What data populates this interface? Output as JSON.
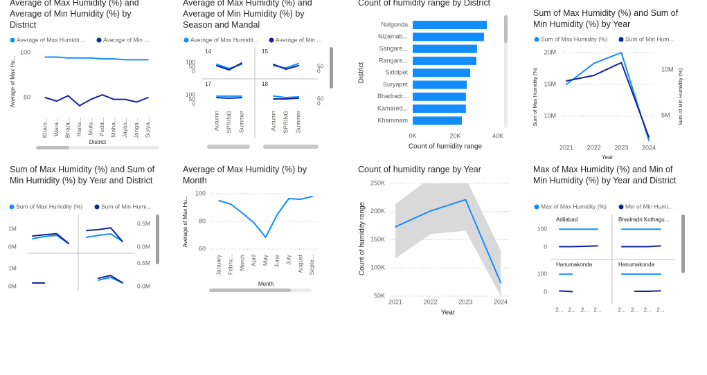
{
  "chart_data": [
    {
      "type": "line",
      "title": "Average of Max Humidity (%) and Average of Min Humidity (%) by District",
      "categories": [
        "Kham...",
        "Wara...",
        "Bhadr...",
        "Hanu...",
        "Mulu...",
        "Pedd...",
        "Maha...",
        "Jayas...",
        "Janga...",
        "Surya..."
      ],
      "series": [
        {
          "name": "Average of Max Humidit...",
          "color": "#118DFF",
          "values": [
            95,
            95,
            94,
            94,
            94,
            93,
            93,
            92,
            92,
            92
          ]
        },
        {
          "name": "Average of Min ...",
          "color": "#12239E",
          "values": [
            50,
            46,
            52,
            41,
            48,
            53,
            48,
            48,
            45,
            50
          ]
        }
      ],
      "ylim": [
        35,
        100
      ],
      "yticks": [
        50,
        100
      ],
      "grid": false,
      "x_label": "District",
      "y_label": "Average of Max Hu..."
    },
    {
      "type": "panel-line",
      "title": "Average of Max Humidity (%) and Average of Min Humidity (%) by Season and Mandal",
      "categories": [
        "Autumn",
        "SPRING",
        "Summer"
      ],
      "series": [
        {
          "name": "Average of Max Humidit...",
          "color": "#118DFF"
        },
        {
          "name": "Average of Min ...",
          "color": "#12239E",
          "axis": "y2"
        }
      ],
      "panels": [
        {
          "name": "14",
          "values": [
            [
              77,
              31,
              77
            ],
            [
              57,
              14,
              86
            ]
          ]
        },
        {
          "name": "15",
          "values": [
            [
              62,
              38,
              85
            ],
            [
              71,
              21,
              57
            ]
          ]
        },
        {
          "name": "17",
          "values": [
            [
              85,
              85,
              85
            ],
            [
              64,
              57,
              64
            ]
          ]
        },
        {
          "name": "18",
          "values": [
            [
              85,
              69,
              77
            ],
            [
              50,
              50,
              57
            ]
          ]
        }
      ],
      "ylim": [
        0,
        100
      ],
      "yticks": [
        0,
        50,
        100
      ],
      "y2lim": [
        0,
        93
      ],
      "y2ticks": [
        0,
        50
      ]
    },
    {
      "type": "hbar",
      "title": "Count of humidity range by District",
      "categories": [
        "Nalgonda",
        "Nizamab...",
        "Sangare...",
        "Rangare...",
        "Siddipet",
        "Suryapet",
        "Bhadradr...",
        "Kamared...",
        "Khammam"
      ],
      "values": [
        34800,
        33500,
        30200,
        29900,
        27000,
        25400,
        25000,
        25000,
        23100
      ],
      "color": "#118DFF",
      "xlim": [
        0,
        40000
      ],
      "xticks": [
        {
          "value": 0,
          "label": "0K"
        },
        {
          "value": 20000,
          "label": "20K"
        },
        {
          "value": 40000,
          "label": "40K"
        }
      ],
      "x_label": "Count of humidity range",
      "y_label": "District"
    },
    {
      "type": "dual-line",
      "title": "Sum of Max Humidity (%) and Sum of Min Humidity (%) by Year",
      "categories": [
        "2021",
        "2022",
        "2023",
        "2024"
      ],
      "series": [
        {
          "name": "Sum of Max Humidity (%)",
          "color": "#118DFF",
          "values": [
            15000000,
            18300000,
            20000000,
            6200000
          ]
        },
        {
          "name": "Sum of Min Hum...",
          "color": "#12239E",
          "axis": "y2",
          "values": [
            8800000,
            9400000,
            10800000,
            2650000
          ]
        }
      ],
      "ylim": [
        6000000,
        20000000
      ],
      "yticks": [
        {
          "value": 10000000,
          "label": "10M"
        },
        {
          "value": 15000000,
          "label": "15M"
        },
        {
          "value": 20000000,
          "label": "20M"
        }
      ],
      "y2lim": [
        2140000,
        11900000
      ],
      "y2ticks": [
        {
          "value": 5000000,
          "label": "5M"
        },
        {
          "value": 10000000,
          "label": "10M"
        }
      ],
      "grid": true,
      "x_label": "Year",
      "y_label": "Sum of Max Humidity (%)",
      "y2_label": "Sum of Min Humidity (%)"
    },
    {
      "type": "panel-line",
      "title": "Sum of Max Humidity (%) and Sum of Min Humidity (%) by Year and District",
      "categories": [
        null,
        null,
        null,
        null
      ],
      "series": [
        {
          "name": "Sum of Max Humidity (%)",
          "color": "#118DFF"
        },
        {
          "name": "Sum of Min Humi...",
          "color": "#12239E",
          "axis": "y2"
        }
      ],
      "panels": [
        {
          "values": [
            [
              460000,
              580000,
              650000,
              190000
            ],
            [
              240000,
              270000,
              290000,
              80000
            ]
          ]
        },
        {
          "values": [
            [
              540000,
              650000,
              730000,
              310000
            ],
            [
              360000,
              380000,
              420000,
              120000
            ]
          ]
        },
        {
          "values": [
            [
              null,
              null,
              null,
              null
            ],
            [
              76000,
              76000,
              null,
              null
            ]
          ]
        },
        {
          "values": [
            [
              null,
              350000,
              500000,
              190000
            ],
            [
              null,
              180000,
              240000,
              80000
            ]
          ]
        }
      ],
      "ylim": [
        0,
        1500000
      ],
      "yticks": [
        {
          "value": 0,
          "label": "0M"
        },
        {
          "value": 1000000,
          "label": "1M"
        }
      ],
      "y2lim": [
        0,
        590000
      ],
      "y2ticks": [
        {
          "value": 0,
          "label": "0.0M"
        },
        {
          "value": 500000,
          "label": "0.5M"
        }
      ]
    },
    {
      "type": "line",
      "title": "Average of Max Humidity (%) by Month",
      "categories": [
        "January",
        "Febru...",
        "March",
        "April",
        "May",
        "June",
        "July",
        "August",
        "Septe..."
      ],
      "values": [
        95,
        92.5,
        86,
        79,
        68.5,
        85,
        96.5,
        96,
        98
      ],
      "color": "#118DFF",
      "ylim": [
        57,
        102
      ],
      "yticks": [
        60,
        80,
        100
      ],
      "grid": true,
      "x_label": "Month",
      "y_label": "Average of Max Hu..."
    },
    {
      "type": "line-band",
      "title": "Count of humidity range by Year",
      "categories": [
        "2021",
        "2022",
        "2023",
        "2024"
      ],
      "values": [
        173000,
        201000,
        221000,
        74000
      ],
      "band_lower": [
        117000,
        160000,
        166000,
        50000
      ],
      "band_upper": [
        213000,
        260000,
        260000,
        131000
      ],
      "color": "#118DFF",
      "band_color": "#D9D9D9",
      "ylim": [
        50000,
        250000
      ],
      "yticks": [
        {
          "value": 50000,
          "label": "50K"
        },
        {
          "value": 100000,
          "label": "100K"
        },
        {
          "value": 150000,
          "label": "150K"
        },
        {
          "value": 200000,
          "label": "200K"
        },
        {
          "value": 250000,
          "label": "250K"
        }
      ],
      "grid": true,
      "x_label": "Year",
      "y_label": "Count of humidity range"
    },
    {
      "type": "panel-line",
      "title": "Max of Max Humidity (%) and Min of Min Humidity (%) by Year and District",
      "categories": [
        "2...",
        "2...",
        "2...",
        "2..."
      ],
      "series": [
        {
          "name": "Max of Max Humidity (%)",
          "color": "#118DFF"
        },
        {
          "name": "Min of Min Humi...",
          "color": "#12239E"
        }
      ],
      "panels": [
        {
          "name": "Adilabad",
          "values": [
            [
              100,
              100,
              100,
              100
            ],
            [
              2,
              2,
              4,
              6
            ]
          ]
        },
        {
          "name": "Bhadradri Kothagu...",
          "values": [
            [
              100,
              100,
              100,
              100
            ],
            [
              2,
              2,
              2,
              6
            ]
          ]
        },
        {
          "name": "Hanumakonda",
          "values": [
            [
              100,
              100,
              null,
              null
            ],
            [
              6,
              2,
              null,
              null
            ]
          ]
        },
        {
          "name": "Hanumakonda",
          "values": [
            [
              100,
              100,
              100,
              100
            ],
            [
              null,
              4,
              4,
              6
            ]
          ]
        }
      ],
      "ylim": [
        0,
        120
      ],
      "yticks": [
        0,
        100
      ]
    }
  ]
}
